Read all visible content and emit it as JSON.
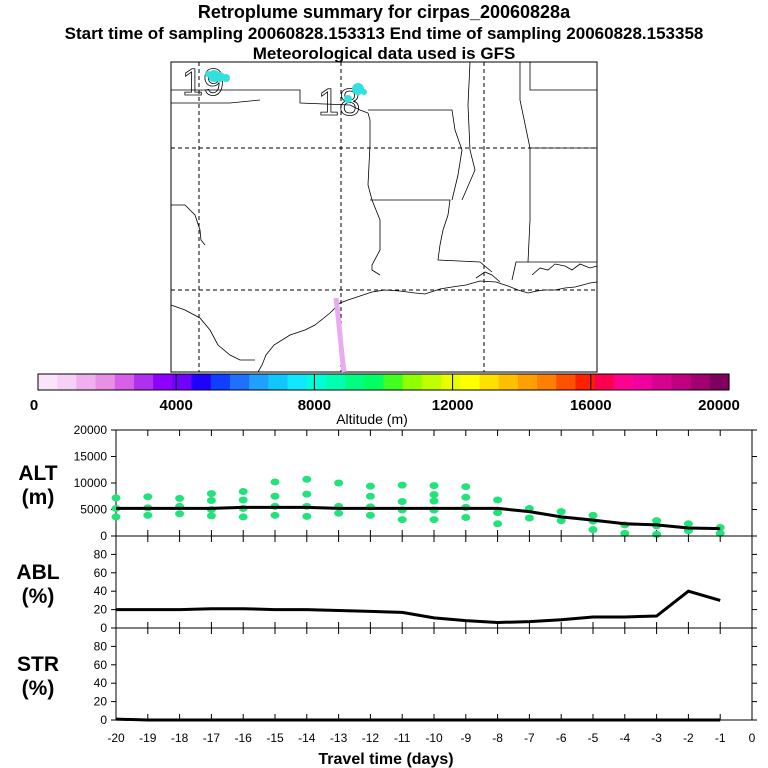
{
  "header": {
    "title": "Retroplume summary for cirpas_20060828a",
    "sampling_line": "Start time of sampling 20060828.153313     End time of sampling 20060828.153358",
    "meteo_line": "Meteorological data used is GFS"
  },
  "map": {
    "day_labels": [
      "19",
      "18"
    ],
    "particle_color": "#33e0e0",
    "track_color": "#eaaaf0"
  },
  "colorbar": {
    "label": "Altitude (m)",
    "tick_labels": [
      "0",
      "4000",
      "8000",
      "12000",
      "16000",
      "20000"
    ],
    "colors": [
      "#fbe4fb",
      "#f6d0f6",
      "#f0b0f0",
      "#e890e8",
      "#d860e8",
      "#b030f0",
      "#9000ff",
      "#7000ff",
      "#2000ff",
      "#1040ff",
      "#2070ff",
      "#20a0ff",
      "#10c8ff",
      "#10e8ff",
      "#00ffd8",
      "#00ffb0",
      "#00ff80",
      "#00ff60",
      "#40ff20",
      "#90ff00",
      "#c0ff00",
      "#e8ff00",
      "#ffff00",
      "#ffe000",
      "#ffc000",
      "#ffa000",
      "#ff8000",
      "#ff5000",
      "#ff2000",
      "#ff0050",
      "#ff0090",
      "#f000a0",
      "#d80090",
      "#c00080",
      "#a00070",
      "#800060"
    ]
  },
  "chart_data": [
    {
      "type": "line",
      "panel": "ALT",
      "ylabel": "ALT\n(m)",
      "ylabel_lines": [
        "ALT",
        "(m)"
      ],
      "ylim": [
        0,
        20000
      ],
      "yticks": [
        0,
        5000,
        10000,
        15000,
        20000
      ],
      "ytick_labels": [
        "0",
        "5000",
        "10000",
        "15000",
        "20000"
      ],
      "x": [
        -20,
        -19,
        -18,
        -17,
        -16,
        -15,
        -14,
        -13,
        -12,
        -11,
        -10,
        -9,
        -8,
        -7,
        -6,
        -5,
        -4,
        -3,
        -2,
        -1
      ],
      "series": [
        {
          "name": "mean altitude",
          "color": "#000000",
          "values": [
            5200,
            5200,
            5200,
            5200,
            5400,
            5400,
            5400,
            5200,
            5200,
            5200,
            5200,
            5200,
            5200,
            4600,
            3600,
            3000,
            2300,
            2100,
            1500,
            1400
          ]
        }
      ],
      "scatter": {
        "color": "#22e27a",
        "points": [
          [
            -20,
            3600
          ],
          [
            -20,
            5200
          ],
          [
            -20,
            7200
          ],
          [
            -19,
            3900
          ],
          [
            -19,
            5300
          ],
          [
            -19,
            7400
          ],
          [
            -18,
            4200
          ],
          [
            -18,
            5600
          ],
          [
            -18,
            7100
          ],
          [
            -17,
            3800
          ],
          [
            -17,
            5000
          ],
          [
            -17,
            6700
          ],
          [
            -17,
            8000
          ],
          [
            -16,
            3600
          ],
          [
            -16,
            5200
          ],
          [
            -16,
            6800
          ],
          [
            -16,
            8400
          ],
          [
            -15,
            3900
          ],
          [
            -15,
            5600
          ],
          [
            -15,
            7500
          ],
          [
            -15,
            10200
          ],
          [
            -14,
            3700
          ],
          [
            -14,
            5600
          ],
          [
            -14,
            7900
          ],
          [
            -14,
            10700
          ],
          [
            -13,
            4300
          ],
          [
            -13,
            5600
          ],
          [
            -13,
            10000
          ],
          [
            -12,
            3900
          ],
          [
            -12,
            5500
          ],
          [
            -12,
            7500
          ],
          [
            -12,
            9400
          ],
          [
            -11,
            3100
          ],
          [
            -11,
            4900
          ],
          [
            -11,
            6500
          ],
          [
            -11,
            9600
          ],
          [
            -10,
            3100
          ],
          [
            -10,
            4900
          ],
          [
            -10,
            6600
          ],
          [
            -10,
            7800
          ],
          [
            -10,
            9500
          ],
          [
            -9,
            3500
          ],
          [
            -9,
            5400
          ],
          [
            -9,
            7300
          ],
          [
            -9,
            9300
          ],
          [
            -8,
            2300
          ],
          [
            -8,
            4400
          ],
          [
            -8,
            6800
          ],
          [
            -7,
            3400
          ],
          [
            -7,
            5200
          ],
          [
            -6,
            2900
          ],
          [
            -6,
            4600
          ],
          [
            -5,
            1200
          ],
          [
            -5,
            2800
          ],
          [
            -5,
            3900
          ],
          [
            -4,
            500
          ],
          [
            -4,
            2100
          ],
          [
            -3,
            300
          ],
          [
            -3,
            1900
          ],
          [
            -3,
            2900
          ],
          [
            -2,
            1000
          ],
          [
            -2,
            2300
          ],
          [
            -1,
            500
          ],
          [
            -1,
            1600
          ]
        ]
      }
    },
    {
      "type": "line",
      "panel": "ABL",
      "ylabel_lines": [
        "ABL",
        "(%)"
      ],
      "ylim": [
        0,
        100
      ],
      "yticks": [
        0,
        20,
        40,
        60,
        80
      ],
      "ytick_labels": [
        "0",
        "20",
        "40",
        "60",
        "80"
      ],
      "x": [
        -20,
        -19,
        -18,
        -17,
        -16,
        -15,
        -14,
        -13,
        -12,
        -11,
        -10,
        -9,
        -8,
        -7,
        -6,
        -5,
        -4,
        -3,
        -2,
        -1
      ],
      "series": [
        {
          "name": "ABL fraction",
          "color": "#000000",
          "values": [
            20,
            20,
            20,
            21,
            21,
            20,
            20,
            19,
            18,
            17,
            11,
            8,
            6,
            7,
            9,
            12,
            12,
            13,
            40,
            30
          ]
        }
      ]
    },
    {
      "type": "line",
      "panel": "STR",
      "ylabel_lines": [
        "STR",
        "(%)"
      ],
      "ylim": [
        0,
        100
      ],
      "yticks": [
        0,
        20,
        40,
        60,
        80
      ],
      "ytick_labels": [
        "0",
        "20",
        "40",
        "60",
        "80"
      ],
      "xlabel": "Travel time (days)",
      "xlim": [
        -20,
        0
      ],
      "xtick_labels": [
        "-20",
        "-19",
        "-18",
        "-17",
        "-16",
        "-15",
        "-14",
        "-13",
        "-12",
        "-11",
        "-10",
        "-9",
        "-8",
        "-7",
        "-6",
        "-5",
        "-4",
        "-3",
        "-2",
        "-1",
        "0"
      ],
      "x": [
        -20,
        -19,
        -18,
        -17,
        -16,
        -15,
        -14,
        -13,
        -12,
        -11,
        -10,
        -9,
        -8,
        -7,
        -6,
        -5,
        -4,
        -3,
        -2,
        -1
      ],
      "series": [
        {
          "name": "stratosphere fraction",
          "color": "#000000",
          "values": [
            1,
            0,
            0,
            0,
            0,
            0,
            0,
            0,
            0,
            0,
            0,
            0,
            0,
            0,
            0,
            0,
            0,
            0,
            0,
            0
          ]
        }
      ]
    }
  ]
}
